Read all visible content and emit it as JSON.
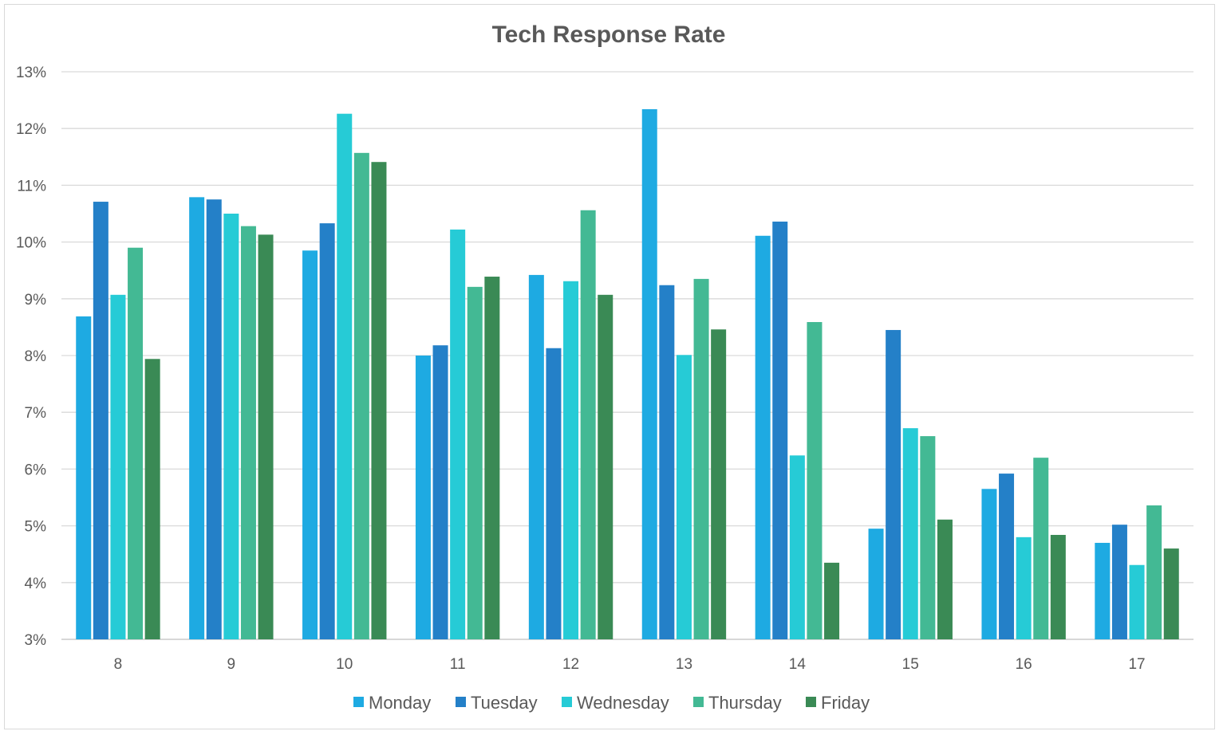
{
  "chart_data": {
    "type": "bar",
    "title": "Tech Response Rate",
    "xlabel": "",
    "ylabel": "",
    "ylim": [
      3,
      13
    ],
    "y_ticks": [
      "3%",
      "4%",
      "5%",
      "6%",
      "7%",
      "8%",
      "9%",
      "10%",
      "11%",
      "12%",
      "13%"
    ],
    "y_unit": "%",
    "grid": true,
    "legend_position": "bottom",
    "categories": [
      "8",
      "9",
      "10",
      "11",
      "12",
      "13",
      "14",
      "15",
      "16",
      "17"
    ],
    "series": [
      {
        "name": "Monday",
        "color": "#1EAAE2",
        "values": [
          8.69,
          10.79,
          9.85,
          8.0,
          9.42,
          12.34,
          10.11,
          4.95,
          5.65,
          4.7
        ]
      },
      {
        "name": "Tuesday",
        "color": "#2480C8",
        "values": [
          10.71,
          10.75,
          10.33,
          8.18,
          8.13,
          9.24,
          10.36,
          8.45,
          5.92,
          5.02
        ]
      },
      {
        "name": "Wednesday",
        "color": "#26CBD6",
        "values": [
          9.07,
          10.5,
          12.26,
          10.22,
          9.31,
          8.01,
          6.24,
          6.72,
          4.8,
          4.31
        ]
      },
      {
        "name": "Thursday",
        "color": "#43B994",
        "values": [
          9.9,
          10.28,
          11.57,
          9.21,
          10.56,
          9.35,
          8.59,
          6.58,
          6.2,
          5.36
        ]
      },
      {
        "name": "Friday",
        "color": "#3A8A55",
        "values": [
          7.94,
          10.13,
          11.41,
          9.39,
          9.07,
          8.46,
          4.35,
          5.11,
          4.84,
          4.6
        ]
      }
    ]
  }
}
